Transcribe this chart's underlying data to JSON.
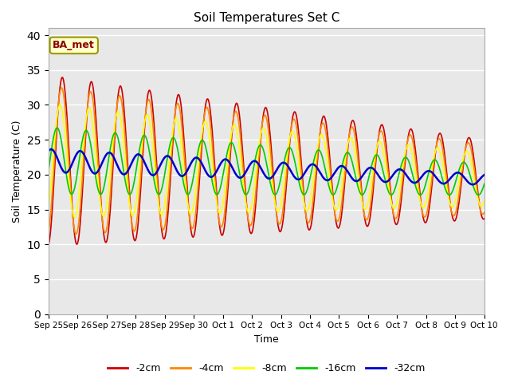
{
  "title": "Soil Temperatures Set C",
  "xlabel": "Time",
  "ylabel": "Soil Temperature (C)",
  "ylim": [
    0,
    41
  ],
  "yticks": [
    0,
    5,
    10,
    15,
    20,
    25,
    30,
    35,
    40
  ],
  "annotation": "BA_met",
  "bg_color": "#e8e8e8",
  "fig_color": "#ffffff",
  "series": [
    {
      "label": "-2cm",
      "color": "#cc0000",
      "lw": 1.2
    },
    {
      "label": "-4cm",
      "color": "#ff8800",
      "lw": 1.2
    },
    {
      "label": "-8cm",
      "color": "#ffff00",
      "lw": 1.2
    },
    {
      "label": "-16cm",
      "color": "#00cc00",
      "lw": 1.2
    },
    {
      "label": "-32cm",
      "color": "#0000cc",
      "lw": 1.8
    }
  ],
  "xtick_labels": [
    "Sep 25",
    "Sep 26",
    "Sep 27",
    "Sep 28",
    "Sep 29",
    "Sep 30",
    "Oct 1",
    "Oct 2",
    "Oct 3",
    "Oct 4",
    "Oct 5",
    "Oct 6",
    "Oct 7",
    "Oct 8",
    "Oct 9",
    "Oct 10"
  ],
  "n_points_per_day": 48
}
